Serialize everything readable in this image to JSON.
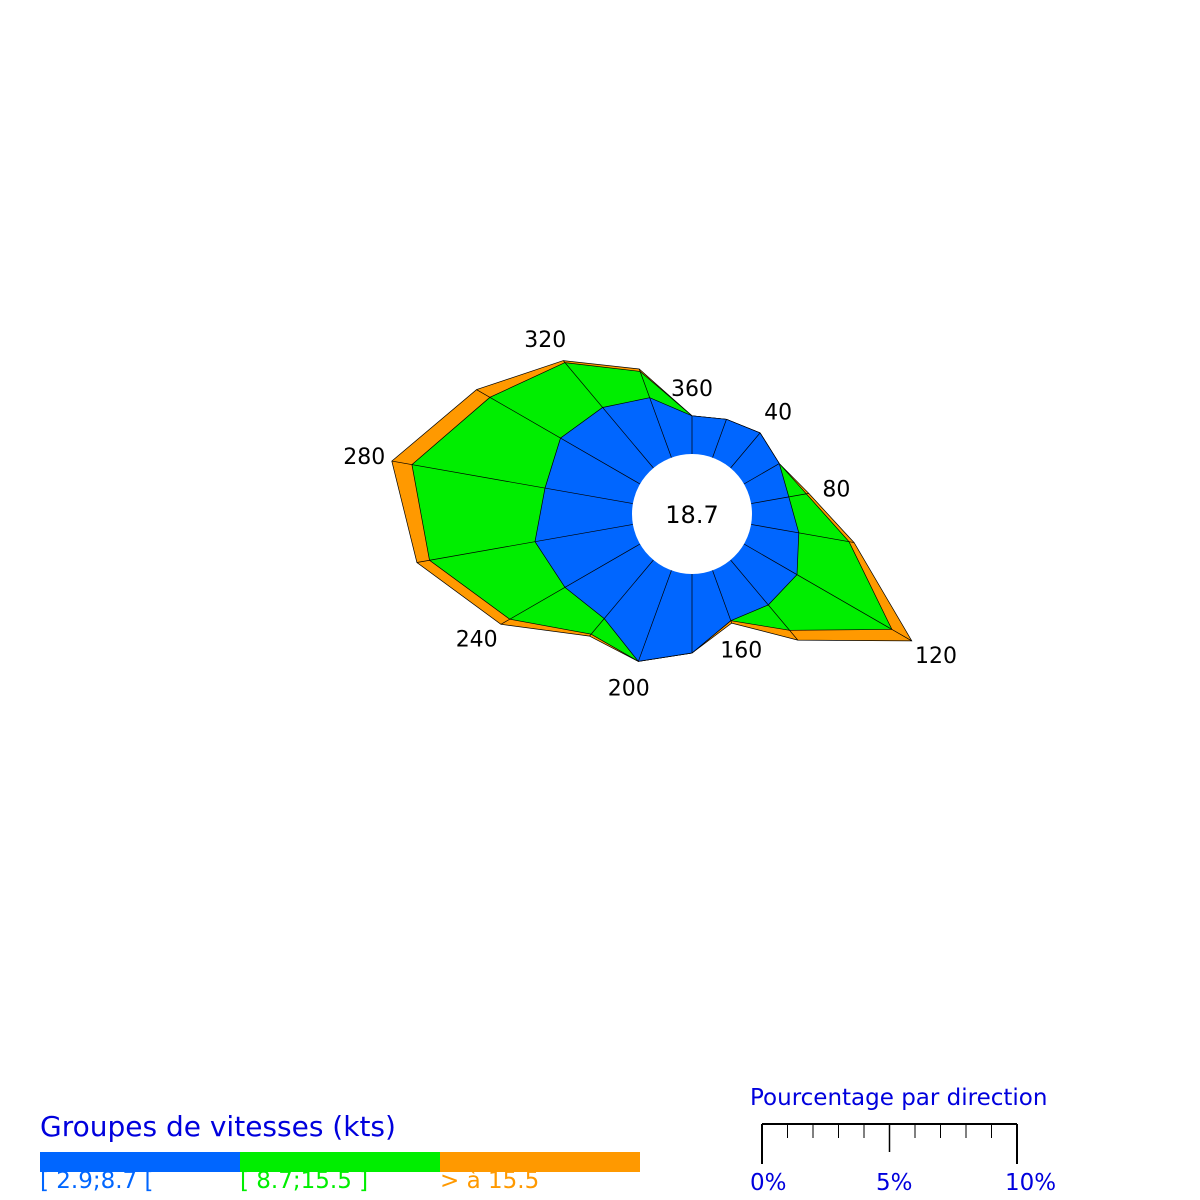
{
  "colors": {
    "low": "#0066ff",
    "mid": "#00ee00",
    "high": "#ff9900",
    "text_blue": "#0000dd"
  },
  "chart_data": {
    "type": "rose",
    "center_label": "18.7",
    "direction_labels": [
      "360",
      "40",
      "80",
      "120",
      "160",
      "200",
      "240",
      "280",
      "320"
    ],
    "directions": [
      0,
      20,
      40,
      60,
      80,
      100,
      120,
      140,
      160,
      180,
      200,
      220,
      240,
      260,
      280,
      300,
      320,
      340
    ],
    "series": [
      {
        "name": "[ 2.9;8.7 [",
        "color": "#0066ff",
        "values": [
          1.5,
          1.6,
          1.8,
          1.6,
          1.5,
          1.9,
          2.4,
          2.3,
          2.1,
          3.1,
          3.8,
          3.0,
          3.4,
          3.9,
          3.5,
          3.6,
          3.1,
          2.5
        ]
      },
      {
        "name": "[ 8.7;15.5 ]",
        "color": "#00ee00",
        "values": [
          0.0,
          0.0,
          0.0,
          0.0,
          0.7,
          2.0,
          4.3,
          1.3,
          0.0,
          0.0,
          0.0,
          0.8,
          2.5,
          4.2,
          5.3,
          3.2,
          2.3,
          1.1
        ]
      },
      {
        "name": "> à 15.5",
        "color": "#ff9900",
        "values": [
          0.0,
          0.0,
          0.0,
          0.0,
          0.1,
          0.2,
          0.9,
          0.5,
          0.1,
          0.0,
          0.0,
          0.1,
          0.4,
          0.5,
          0.8,
          0.6,
          0.1,
          0.1
        ]
      }
    ],
    "unit": "%"
  },
  "legend": {
    "title": "Groupes de vitesses (kts)",
    "items": [
      {
        "label": "[ 2.9;8.7 [",
        "color": "#0066ff"
      },
      {
        "label": "[ 8.7;15.5 ]",
        "color": "#00ee00"
      },
      {
        "label": "> à 15.5",
        "color": "#ff9900"
      }
    ]
  },
  "scale": {
    "title": "Pourcentage par direction",
    "labels": [
      "0%",
      "5%",
      "10%"
    ]
  }
}
